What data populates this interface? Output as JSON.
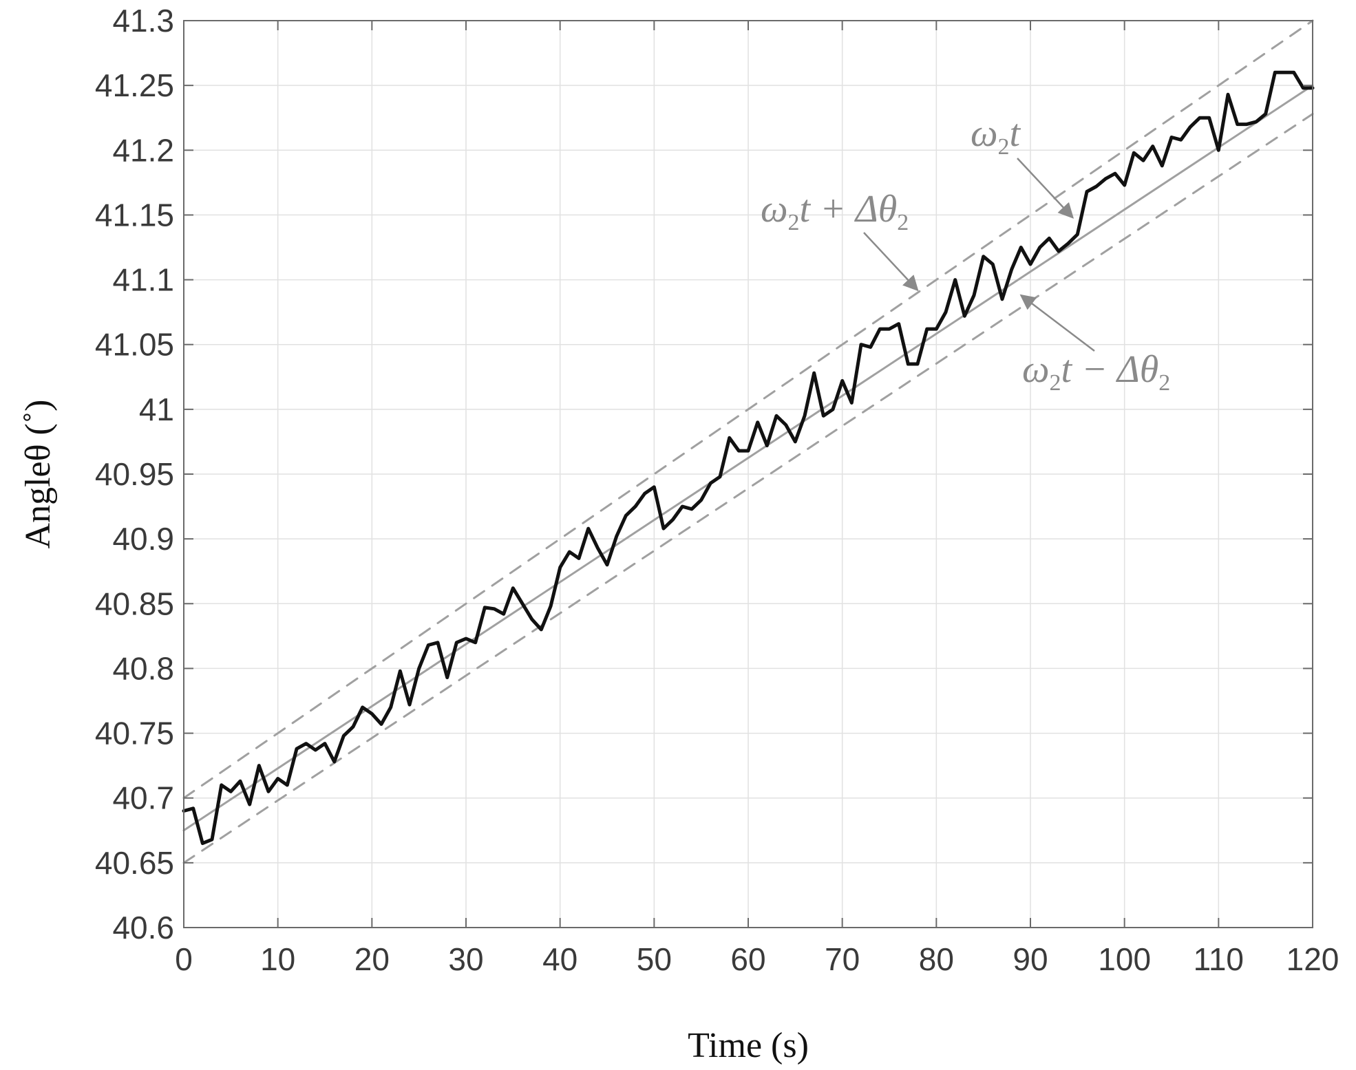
{
  "chart_data": {
    "type": "line",
    "title": "",
    "xlabel": "Time (s)",
    "ylabel": "Angleθ (˚)",
    "xlim": [
      0,
      120
    ],
    "ylim": [
      40.6,
      41.3
    ],
    "x_ticks": [
      0,
      10,
      20,
      30,
      40,
      50,
      60,
      70,
      80,
      90,
      100,
      110,
      120
    ],
    "x_tick_labels": [
      "0",
      "10",
      "20",
      "30",
      "40",
      "50",
      "60",
      "70",
      "80",
      "90",
      "100",
      "110",
      "120"
    ],
    "y_ticks": [
      40.6,
      40.65,
      40.7,
      40.75,
      40.8,
      40.85,
      40.9,
      40.95,
      41.0,
      41.05,
      41.1,
      41.15,
      41.2,
      41.25,
      41.3
    ],
    "y_tick_labels": [
      "40.6",
      "40.65",
      "40.7",
      "40.75",
      "40.8",
      "40.85",
      "40.9",
      "40.95",
      "41",
      "41.05",
      "41.1",
      "41.15",
      "41.2",
      "41.25",
      "41.3"
    ],
    "grid": true,
    "legend": "none",
    "series": [
      {
        "style": "solid-black-thick",
        "color": "#111111",
        "x": [
          0,
          1,
          2,
          3,
          4,
          5,
          6,
          7,
          8,
          9,
          10,
          11,
          12,
          13,
          14,
          15,
          16,
          17,
          18,
          19,
          20,
          21,
          22,
          23,
          24,
          25,
          26,
          27,
          28,
          29,
          30,
          31,
          32,
          33,
          34,
          35,
          36,
          37,
          38,
          39,
          40,
          41,
          42,
          43,
          44,
          45,
          46,
          47,
          48,
          49,
          50,
          51,
          52,
          53,
          54,
          55,
          56,
          57,
          58,
          59,
          60,
          61,
          62,
          63,
          64,
          65,
          66,
          67,
          68,
          69,
          70,
          71,
          72,
          73,
          74,
          75,
          76,
          77,
          78,
          79,
          80,
          81,
          82,
          83,
          84,
          85,
          86,
          87,
          88,
          89,
          90,
          91,
          92,
          93,
          94,
          95,
          96,
          97,
          98,
          99,
          100,
          101,
          102,
          103,
          104,
          105,
          106,
          107,
          108,
          109,
          110,
          111,
          112,
          113,
          114,
          115,
          116,
          117,
          118,
          119,
          120
        ],
        "y": [
          40.69,
          40.692,
          40.665,
          40.668,
          40.71,
          40.705,
          40.713,
          40.695,
          40.725,
          40.705,
          40.715,
          40.71,
          40.738,
          40.742,
          40.737,
          40.742,
          40.728,
          40.748,
          40.755,
          40.77,
          40.765,
          40.757,
          40.77,
          40.798,
          40.772,
          40.8,
          40.818,
          40.82,
          40.793,
          40.82,
          40.823,
          40.82,
          40.847,
          40.846,
          40.842,
          40.862,
          40.85,
          40.838,
          40.83,
          40.848,
          40.878,
          40.89,
          40.885,
          40.908,
          40.893,
          40.88,
          40.902,
          40.918,
          40.925,
          40.935,
          40.94,
          40.908,
          40.915,
          40.925,
          40.923,
          40.93,
          40.943,
          40.948,
          40.978,
          40.968,
          40.968,
          40.99,
          40.972,
          40.995,
          40.988,
          40.975,
          40.995,
          41.028,
          40.995,
          41.0,
          41.022,
          41.005,
          41.05,
          41.048,
          41.062,
          41.062,
          41.066,
          41.035,
          41.035,
          41.062,
          41.062,
          41.075,
          41.1,
          41.072,
          41.088,
          41.118,
          41.112,
          41.085,
          41.108,
          41.125,
          41.112,
          41.125,
          41.132,
          41.122,
          41.128,
          41.135,
          41.168,
          41.172,
          41.178,
          41.182,
          41.173,
          41.198,
          41.192,
          41.203,
          41.188,
          41.21,
          41.208,
          41.218,
          41.225,
          41.225,
          41.2,
          41.243,
          41.22,
          41.22,
          41.222,
          41.228,
          41.26,
          41.26,
          41.26,
          41.248,
          41.248
        ]
      },
      {
        "name": "ω₂t",
        "style": "solid-gray",
        "color": "#a0a0a0",
        "x": [
          0,
          120
        ],
        "y": [
          40.675,
          41.25
        ]
      },
      {
        "name": "ω₂t + Δθ₂",
        "style": "dashed-gray",
        "color": "#a0a0a0",
        "x": [
          0,
          120
        ],
        "y": [
          40.7,
          41.3
        ]
      },
      {
        "name": "ω₂t − Δθ₂",
        "style": "dashed-gray",
        "color": "#a0a0a0",
        "x": [
          0,
          120
        ],
        "y": [
          40.65,
          41.228
        ]
      }
    ],
    "annotations": [
      {
        "label_parts": [
          "ω",
          "2",
          "t"
        ],
        "arrow_to": [
          94.5,
          41.148
        ]
      },
      {
        "label_parts": [
          "ω",
          "2",
          "t + Δθ",
          "2"
        ],
        "arrow_to": [
          78,
          41.092
        ]
      },
      {
        "label_parts": [
          "ω",
          "2",
          "t − Δθ",
          "2"
        ],
        "arrow_to": [
          89,
          41.088
        ]
      }
    ]
  }
}
